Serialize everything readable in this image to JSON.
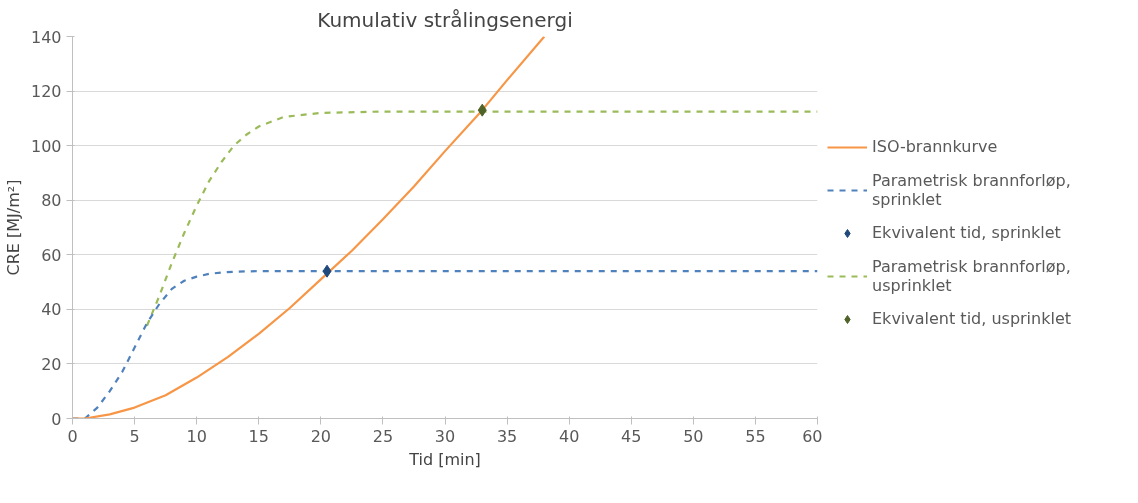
{
  "chart_data": {
    "type": "line",
    "title": "Kumulativ strålingsenergi",
    "xlabel": "Tid [min]",
    "ylabel": "CRE [MJ/m²]",
    "xlim": [
      0,
      60
    ],
    "xticks": [
      0,
      5,
      10,
      15,
      20,
      25,
      30,
      35,
      40,
      45,
      50,
      55,
      60
    ],
    "ylim": [
      0,
      140
    ],
    "yticks": [
      0,
      20,
      40,
      60,
      80,
      100,
      120,
      140
    ],
    "grid": "y",
    "legend": "right",
    "series": [
      {
        "name": "ISO-brannkurve",
        "color": "#f79646",
        "line_style": "solid",
        "x": [
          0,
          1,
          3,
          5,
          7.5,
          10,
          12.5,
          15,
          17.5,
          20,
          22.5,
          25,
          27.5,
          30,
          33,
          35,
          38
        ],
        "values": [
          0,
          0,
          1.5,
          4,
          8.5,
          15,
          22.5,
          31,
          40.5,
          51,
          61.5,
          73,
          85,
          98,
          113,
          124,
          140
        ]
      },
      {
        "name": "Parametrisk brannforløp, sprinklet",
        "color": "#4f81bd",
        "line_style": "dashed",
        "x": [
          0,
          1,
          2,
          3,
          4,
          5,
          6,
          7,
          8,
          9,
          10,
          11,
          12,
          13,
          15,
          20,
          60
        ],
        "values": [
          0,
          0,
          4,
          10,
          17,
          26,
          35,
          42,
          47.5,
          50.5,
          52,
          53,
          53.5,
          53.8,
          54,
          54,
          54
        ]
      },
      {
        "name": "Ekvivalent tid, sprinklet",
        "type": "scatter",
        "marker": "diamond",
        "color": "#1f497d",
        "x": [
          20.5
        ],
        "values": [
          54
        ]
      },
      {
        "name": "Parametrisk brannforløp, usprinklet",
        "color": "#9bbb59",
        "line_style": "dashed",
        "x": [
          6,
          7,
          8,
          9,
          10,
          11,
          12,
          13,
          14,
          15,
          17,
          20,
          25,
          60
        ],
        "values": [
          34,
          45,
          57,
          68,
          78,
          87,
          94,
          100,
          104,
          107,
          110.5,
          112,
          112.5,
          112.5
        ]
      },
      {
        "name": "Ekvivalent tid, usprinklet",
        "type": "scatter",
        "marker": "diamond",
        "color": "#4f6228",
        "x": [
          33
        ],
        "values": [
          113
        ]
      }
    ]
  }
}
